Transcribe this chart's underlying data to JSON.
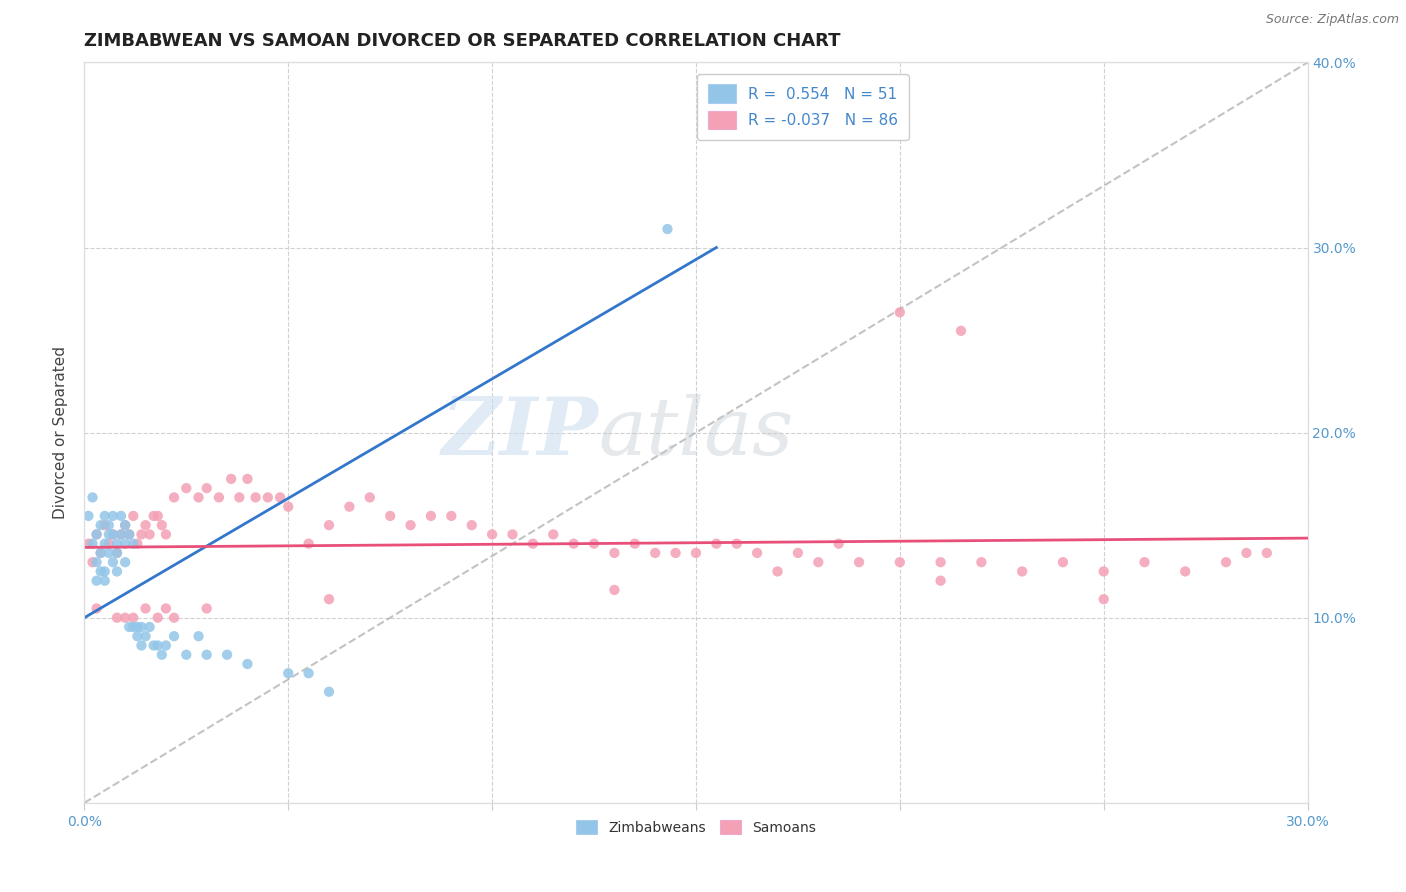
{
  "title": "ZIMBABWEAN VS SAMOAN DIVORCED OR SEPARATED CORRELATION CHART",
  "source": "Source: ZipAtlas.com",
  "ylabel": "Divorced or Separated",
  "xlim": [
    0.0,
    0.3
  ],
  "ylim": [
    0.0,
    0.4
  ],
  "xticks": [
    0.0,
    0.05,
    0.1,
    0.15,
    0.2,
    0.25,
    0.3
  ],
  "yticks": [
    0.0,
    0.1,
    0.2,
    0.3,
    0.4
  ],
  "blue_color": "#92C5E8",
  "pink_color": "#F4A0B5",
  "regression_blue": "#3377CC",
  "regression_pink": "#E8507A",
  "blue_R": 0.554,
  "blue_N": 51,
  "pink_R": -0.037,
  "pink_N": 86,
  "blue_scatter_x": [
    0.001,
    0.002,
    0.002,
    0.003,
    0.003,
    0.003,
    0.004,
    0.004,
    0.004,
    0.005,
    0.005,
    0.005,
    0.005,
    0.006,
    0.006,
    0.006,
    0.007,
    0.007,
    0.007,
    0.008,
    0.008,
    0.008,
    0.009,
    0.009,
    0.01,
    0.01,
    0.01,
    0.011,
    0.011,
    0.012,
    0.012,
    0.013,
    0.013,
    0.014,
    0.014,
    0.015,
    0.016,
    0.017,
    0.018,
    0.019,
    0.02,
    0.022,
    0.025,
    0.028,
    0.03,
    0.035,
    0.04,
    0.05,
    0.055,
    0.06,
    0.143
  ],
  "blue_scatter_y": [
    0.155,
    0.14,
    0.165,
    0.13,
    0.145,
    0.12,
    0.135,
    0.15,
    0.125,
    0.14,
    0.155,
    0.125,
    0.12,
    0.145,
    0.135,
    0.15,
    0.13,
    0.145,
    0.155,
    0.14,
    0.125,
    0.135,
    0.145,
    0.155,
    0.13,
    0.14,
    0.15,
    0.145,
    0.095,
    0.14,
    0.095,
    0.095,
    0.09,
    0.095,
    0.085,
    0.09,
    0.095,
    0.085,
    0.085,
    0.08,
    0.085,
    0.09,
    0.08,
    0.09,
    0.08,
    0.08,
    0.075,
    0.07,
    0.07,
    0.06,
    0.31
  ],
  "pink_scatter_x": [
    0.001,
    0.002,
    0.003,
    0.004,
    0.005,
    0.006,
    0.007,
    0.008,
    0.009,
    0.01,
    0.011,
    0.012,
    0.013,
    0.014,
    0.015,
    0.016,
    0.017,
    0.018,
    0.019,
    0.02,
    0.022,
    0.025,
    0.028,
    0.03,
    0.033,
    0.036,
    0.038,
    0.04,
    0.042,
    0.045,
    0.048,
    0.05,
    0.055,
    0.06,
    0.065,
    0.07,
    0.075,
    0.08,
    0.085,
    0.09,
    0.095,
    0.1,
    0.105,
    0.11,
    0.115,
    0.12,
    0.125,
    0.13,
    0.135,
    0.14,
    0.145,
    0.15,
    0.155,
    0.16,
    0.165,
    0.17,
    0.175,
    0.18,
    0.185,
    0.19,
    0.2,
    0.21,
    0.22,
    0.23,
    0.24,
    0.25,
    0.26,
    0.27,
    0.28,
    0.29,
    0.003,
    0.008,
    0.01,
    0.012,
    0.015,
    0.018,
    0.02,
    0.022,
    0.03,
    0.06,
    0.13,
    0.21,
    0.25,
    0.285,
    0.2,
    0.215
  ],
  "pink_scatter_y": [
    0.14,
    0.13,
    0.145,
    0.135,
    0.15,
    0.14,
    0.145,
    0.135,
    0.145,
    0.15,
    0.145,
    0.155,
    0.14,
    0.145,
    0.15,
    0.145,
    0.155,
    0.155,
    0.15,
    0.145,
    0.165,
    0.17,
    0.165,
    0.17,
    0.165,
    0.175,
    0.165,
    0.175,
    0.165,
    0.165,
    0.165,
    0.16,
    0.14,
    0.15,
    0.16,
    0.165,
    0.155,
    0.15,
    0.155,
    0.155,
    0.15,
    0.145,
    0.145,
    0.14,
    0.145,
    0.14,
    0.14,
    0.135,
    0.14,
    0.135,
    0.135,
    0.135,
    0.14,
    0.14,
    0.135,
    0.125,
    0.135,
    0.13,
    0.14,
    0.13,
    0.13,
    0.13,
    0.13,
    0.125,
    0.13,
    0.125,
    0.13,
    0.125,
    0.13,
    0.135,
    0.105,
    0.1,
    0.1,
    0.1,
    0.105,
    0.1,
    0.105,
    0.1,
    0.105,
    0.11,
    0.115,
    0.12,
    0.11,
    0.135,
    0.265,
    0.255
  ]
}
